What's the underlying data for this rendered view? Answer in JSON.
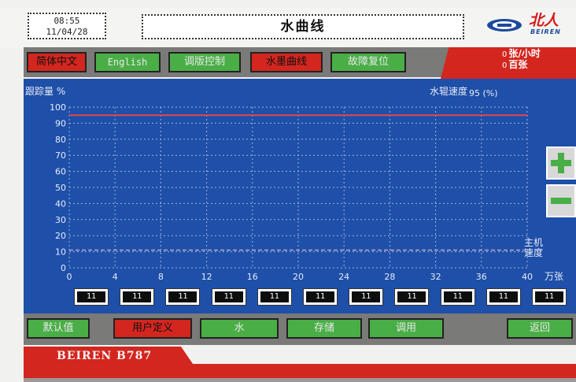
{
  "header": {
    "time": "08:55",
    "date": "11/04/28",
    "title": "水曲线",
    "brand_logo_text": "北人",
    "brand_sub": "BEIREN"
  },
  "nav": {
    "buttons": [
      {
        "label": "简体中文",
        "state": "active"
      },
      {
        "label": "English",
        "state": "inactive"
      },
      {
        "label": "调版控制",
        "state": "inactive"
      },
      {
        "label": "水墨曲线",
        "state": "active"
      },
      {
        "label": "故障复位",
        "state": "inactive"
      }
    ],
    "rate_value": "0",
    "rate_unit": "张/小时",
    "count_value": "0",
    "count_unit": "百张"
  },
  "chart_data": {
    "type": "line",
    "ylabel": "跟踪量 %",
    "speed_label": "水辊速度",
    "speed_value": "95 (%)",
    "xlabel": "万张",
    "right_label": "主机速度",
    "x_ticks": [
      0,
      4,
      8,
      12,
      16,
      20,
      24,
      28,
      32,
      36,
      40
    ],
    "y_ticks": [
      0,
      10,
      20,
      30,
      40,
      50,
      60,
      70,
      80,
      90,
      100
    ],
    "xlim": [
      0,
      40
    ],
    "ylim": [
      0,
      100
    ],
    "grid": true,
    "series": [
      {
        "x": [
          0,
          40
        ],
        "values": [
          95,
          95
        ],
        "color": "#e2474a"
      },
      {
        "x": [
          0,
          4,
          8,
          12,
          16,
          20,
          24,
          28,
          32,
          36,
          40
        ],
        "values": [
          11,
          11,
          11,
          11,
          11,
          11,
          11,
          11,
          11,
          11,
          11
        ],
        "color": "#b6a2c8"
      }
    ]
  },
  "values_row": [
    "11",
    "11",
    "11",
    "11",
    "11",
    "11",
    "11",
    "11",
    "11",
    "11",
    "11"
  ],
  "bottom": {
    "default_label": "默认值",
    "custom_label": "用户定义",
    "water_label": "水",
    "save_label": "存储",
    "load_label": "调用",
    "back_label": "返回"
  },
  "footer": {
    "model": "BEIREN B787"
  },
  "colors": {
    "panel_blue": "#1e4fa9",
    "accent_red": "#d3261f",
    "button_green": "#4aae47",
    "bar_gray": "#7a7a78"
  }
}
